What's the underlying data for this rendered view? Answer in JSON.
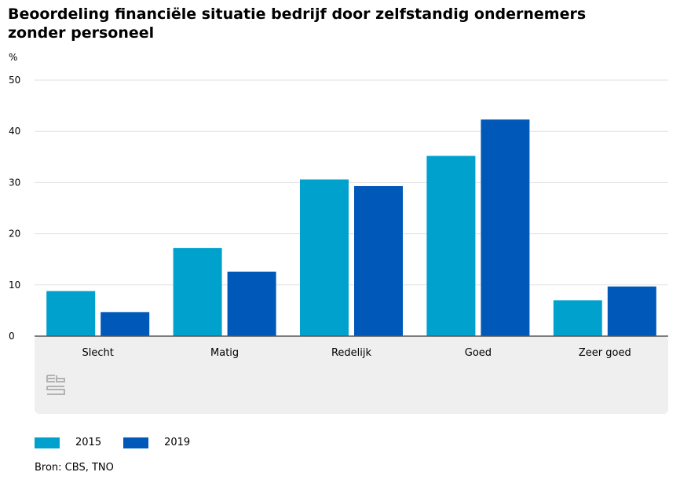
{
  "chart_data": {
    "type": "bar",
    "title": "Beoordeling financiële situatie bedrijf door zelfstandig ondernemers zonder personeel",
    "ylabel": "%",
    "xlabel": "",
    "ylim": [
      0,
      50
    ],
    "yticks": [
      0,
      10,
      20,
      30,
      40,
      50
    ],
    "categories": [
      "Slecht",
      "Matig",
      "Redelijk",
      "Goed",
      "Zeer goed"
    ],
    "series": [
      {
        "name": "2015",
        "color": "#00a1cd",
        "values": [
          8.8,
          17.2,
          30.6,
          35.2,
          7.0
        ]
      },
      {
        "name": "2019",
        "color": "#0058b8",
        "values": [
          4.7,
          12.6,
          29.3,
          42.3,
          9.7
        ]
      }
    ],
    "grid": true,
    "legend_position": "bottom-left"
  },
  "logo": {
    "text": "cbs",
    "icon": "cbs-logo-icon"
  },
  "source": "Bron: CBS, TNO",
  "colors": {
    "grid": "#e1e1e1",
    "axis": "#555555",
    "panel": "#efefef",
    "logo": "#b3b3b3"
  }
}
